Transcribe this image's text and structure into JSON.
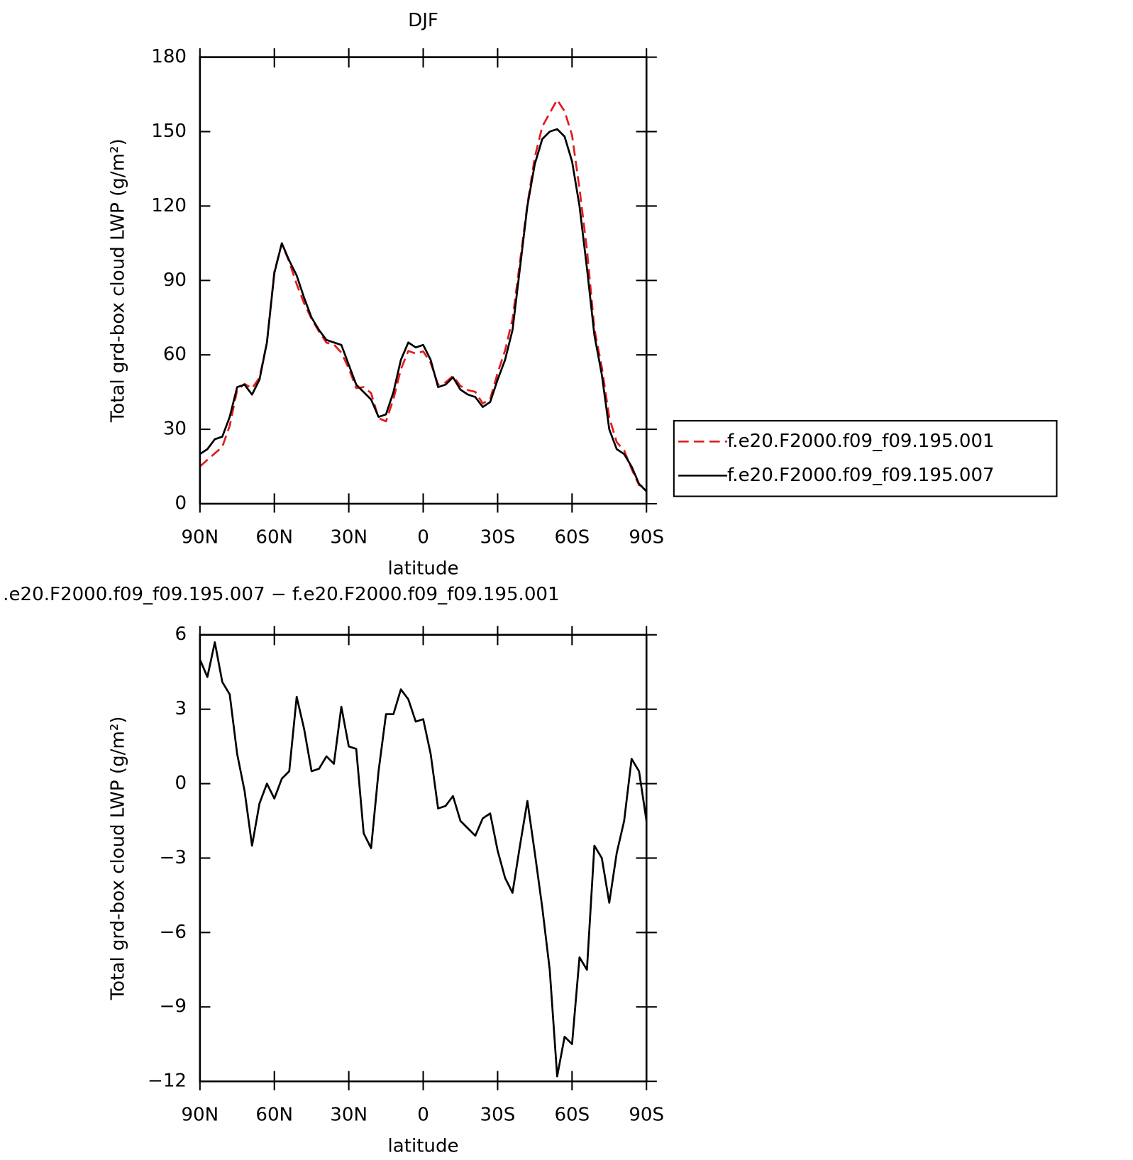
{
  "chart_data": [
    {
      "type": "line",
      "title": "DJF",
      "x_label": "latitude",
      "y_label": "Total grd-box cloud LWP (g/m²)",
      "xlim": [
        90,
        -90
      ],
      "xticks": [
        {
          "value": 90,
          "label": "90N"
        },
        {
          "value": 60,
          "label": "60N"
        },
        {
          "value": 30,
          "label": "30N"
        },
        0,
        {
          "value": -30,
          "label": "30S"
        },
        {
          "value": -60,
          "label": "60S"
        },
        {
          "value": -90,
          "label": "90S"
        }
      ],
      "ylim": [
        0,
        180
      ],
      "yticks": [
        0,
        30,
        60,
        90,
        120,
        150,
        180
      ],
      "x": [
        90,
        87,
        84,
        81,
        78,
        75,
        72,
        69,
        66,
        63,
        60,
        57,
        54,
        51,
        48,
        45,
        42,
        39,
        36,
        33,
        30,
        27,
        24,
        21,
        18,
        15,
        12,
        9,
        6,
        3,
        0,
        -3,
        -6,
        -9,
        -12,
        -15,
        -18,
        -21,
        -24,
        -27,
        -30,
        -33,
        -36,
        -39,
        -42,
        -45,
        -48,
        -51,
        -54,
        -57,
        -60,
        -63,
        -66,
        -69,
        -72,
        -75,
        -78,
        -81,
        -84,
        -87,
        -90
      ],
      "legend": "right",
      "series": [
        {
          "name": "f.e20.F2000.f09_f09.195.001",
          "color": "#e41a1c",
          "line_style": "dashed",
          "values": [
            15,
            17.7,
            20.3,
            22.9,
            31.4,
            45.8,
            48.3,
            46.5,
            50.8,
            65,
            93.6,
            104.8,
            97.5,
            88.5,
            80.8,
            74.5,
            69.4,
            64.9,
            64.2,
            60.9,
            54.5,
            46.6,
            47,
            44.6,
            34.5,
            33.2,
            42.2,
            54.2,
            61.6,
            60.5,
            61.4,
            56.8,
            48,
            48.9,
            51.5,
            47.5,
            45.8,
            45.1,
            40.4,
            42.2,
            52.7,
            61.8,
            74.4,
            97.5,
            120.7,
            139.8,
            152,
            157.5,
            162.8,
            158.2,
            148.5,
            127,
            102.5,
            70.5,
            55,
            34.8,
            24.8,
            21.5,
            14,
            7.5,
            6.5
          ]
        },
        {
          "name": "f.e20.F2000.f09_f09.195.007",
          "color": "#000000",
          "line_style": "solid",
          "values": [
            20,
            22,
            26,
            27,
            35,
            47,
            48,
            44,
            50,
            65,
            93,
            105,
            98,
            92,
            83,
            75,
            70,
            66,
            65,
            64,
            56,
            48,
            45,
            42,
            35,
            36,
            45,
            58,
            65,
            63,
            64,
            58,
            47,
            48,
            51,
            46,
            44,
            43,
            39,
            41,
            50,
            58,
            70,
            95,
            120,
            137,
            147,
            150,
            151,
            148,
            138,
            120,
            95,
            68,
            52,
            30,
            22,
            20,
            15,
            8,
            5
          ]
        }
      ]
    },
    {
      "type": "line",
      "title": ".e20.F2000.f09_f09.195.007 − f.e20.F2000.f09_f09.195.001",
      "x_label": "latitude",
      "y_label": "Total grd-box cloud LWP (g/m²)",
      "xlim": [
        90,
        -90
      ],
      "xticks": [
        {
          "value": 90,
          "label": "90N"
        },
        {
          "value": 60,
          "label": "60N"
        },
        {
          "value": 30,
          "label": "30N"
        },
        0,
        {
          "value": -30,
          "label": "30S"
        },
        {
          "value": -60,
          "label": "60S"
        },
        {
          "value": -90,
          "label": "90S"
        }
      ],
      "ylim": [
        -12,
        6
      ],
      "yticks": [
        {
          "value": -12,
          "label": "−12"
        },
        {
          "value": -9,
          "label": "−9"
        },
        {
          "value": -6,
          "label": "−6"
        },
        {
          "value": -3,
          "label": "−3"
        },
        0,
        3,
        6
      ],
      "x": [
        90,
        87,
        84,
        81,
        78,
        75,
        72,
        69,
        66,
        63,
        60,
        57,
        54,
        51,
        48,
        45,
        42,
        39,
        36,
        33,
        30,
        27,
        24,
        21,
        18,
        15,
        12,
        9,
        6,
        3,
        0,
        -3,
        -6,
        -9,
        -12,
        -15,
        -18,
        -21,
        -24,
        -27,
        -30,
        -33,
        -36,
        -39,
        -42,
        -45,
        -48,
        -51,
        -54,
        -57,
        -60,
        -63,
        -66,
        -69,
        -72,
        -75,
        -78,
        -81,
        -84,
        -87,
        -90
      ],
      "series": [
        {
          "color": "#000000",
          "line_style": "solid",
          "values": [
            5,
            4.3,
            5.7,
            4.1,
            3.6,
            1.2,
            -0.3,
            -2.5,
            -0.8,
            0,
            -0.6,
            0.2,
            0.5,
            3.5,
            2.2,
            0.5,
            0.6,
            1.1,
            0.8,
            3.1,
            1.5,
            1.4,
            -2,
            -2.6,
            0.5,
            2.8,
            2.8,
            3.8,
            3.4,
            2.5,
            2.6,
            1.2,
            -1,
            -0.9,
            -0.5,
            -1.5,
            -1.8,
            -2.1,
            -1.4,
            -1.2,
            -2.7,
            -3.8,
            -4.4,
            -2.5,
            -0.7,
            -2.8,
            -5,
            -7.5,
            -11.8,
            -10.2,
            -10.5,
            -7,
            -7.5,
            -2.5,
            -3,
            -4.8,
            -2.8,
            -1.5,
            1,
            0.5,
            -1.5
          ]
        }
      ]
    }
  ]
}
